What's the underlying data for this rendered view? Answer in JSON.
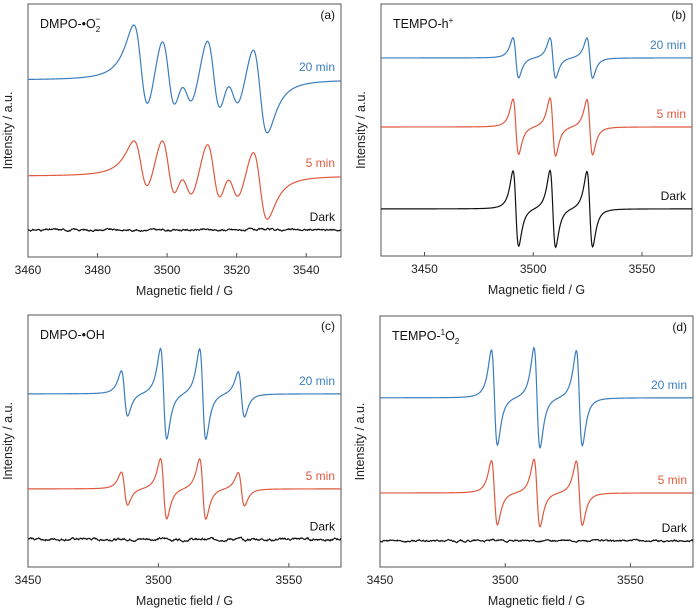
{
  "chart_data": [
    {
      "id": "a",
      "type": "line",
      "panel_label": "(a)",
      "title": "DMPO-•O",
      "title_sub": "2",
      "title_sup": "−",
      "xlabel": "Magnetic field / G",
      "ylabel": "Intensity / a.u.",
      "xlim": [
        3460,
        3550
      ],
      "xticks": [
        3460,
        3480,
        3500,
        3520,
        3540
      ],
      "ylim": [
        0,
        1
      ],
      "grid": false,
      "series": [
        {
          "name": "20 min",
          "color": "#3b7dbf",
          "baseline": 0.7,
          "amplitude": 0.37,
          "width": 2.2,
          "lines": [
            3492.5,
            3500.4,
            3505.6,
            3513.4,
            3518.9,
            3526.7
          ],
          "weights": [
            1.0,
            1.0,
            0.55,
            1.0,
            0.55,
            1.0
          ]
        },
        {
          "name": "5 min",
          "color": "#e05a3f",
          "baseline": 0.32,
          "amplitude": 0.3,
          "width": 2.2,
          "lines": [
            3492.5,
            3500.4,
            3505.6,
            3513.4,
            3518.9,
            3526.7
          ],
          "weights": [
            0.75,
            1.0,
            0.6,
            1.0,
            0.6,
            1.0
          ]
        },
        {
          "name": "Dark",
          "color": "#111111",
          "baseline": 0.107,
          "amplitude": 0.0,
          "noise": 0.004,
          "lines": [],
          "weights": []
        }
      ]
    },
    {
      "id": "b",
      "type": "line",
      "panel_label": "(b)",
      "title": "TEMPO-h",
      "title_sub": "",
      "title_sup": "+",
      "xlabel": "Magnetic field / G",
      "ylabel": "Intensity / a.u.",
      "xlim": [
        3430,
        3573
      ],
      "xticks": [
        3450,
        3500,
        3550
      ],
      "ylim": [
        0,
        1
      ],
      "grid": false,
      "series": [
        {
          "name": "20 min",
          "color": "#3b7dbf",
          "baseline": 0.786,
          "amplitude": 0.16,
          "width": 1.3,
          "lines": [
            3492.0,
            3509.0,
            3526.0
          ],
          "weights": [
            1.0,
            1.0,
            1.0
          ]
        },
        {
          "name": "5 min",
          "color": "#e05a3f",
          "baseline": 0.512,
          "amplitude": 0.22,
          "width": 1.3,
          "lines": [
            3492.0,
            3509.0,
            3526.0
          ],
          "weights": [
            1.0,
            1.05,
            1.0
          ]
        },
        {
          "name": "Dark",
          "color": "#111111",
          "baseline": 0.187,
          "amplitude": 0.3,
          "width": 1.3,
          "lines": [
            3492.0,
            3509.0,
            3526.0
          ],
          "weights": [
            1.0,
            1.02,
            1.0
          ]
        }
      ]
    },
    {
      "id": "c",
      "type": "line",
      "panel_label": "(c)",
      "title": "DMPO-•OH",
      "title_sub": "",
      "title_sup": "",
      "xlabel": "Magnetic field / G",
      "ylabel": "Intensity / a.u.",
      "xlim": [
        3450,
        3570
      ],
      "xticks": [
        3450,
        3500,
        3550
      ],
      "ylim": [
        0,
        1
      ],
      "grid": false,
      "series": [
        {
          "name": "20 min",
          "color": "#3b7dbf",
          "baseline": 0.687,
          "amplitude": 0.36,
          "width": 1.2,
          "lines": [
            3487.0,
            3502.0,
            3517.0,
            3531.8
          ],
          "weights": [
            0.5,
            1.0,
            1.0,
            0.5
          ]
        },
        {
          "name": "5 min",
          "color": "#e05a3f",
          "baseline": 0.31,
          "amplitude": 0.24,
          "width": 1.2,
          "lines": [
            3487.0,
            3502.0,
            3517.0,
            3531.8
          ],
          "weights": [
            0.55,
            1.0,
            1.0,
            0.55
          ]
        },
        {
          "name": "Dark",
          "color": "#111111",
          "baseline": 0.11,
          "amplitude": 0.0,
          "noise": 0.005,
          "lines": [],
          "weights": []
        }
      ]
    },
    {
      "id": "d",
      "type": "line",
      "panel_label": "(d)",
      "title": "TEMPO-",
      "title_pre_sup": "1",
      "title_tail": "O",
      "title_sub": "2",
      "title_sup": "",
      "xlabel": "Magnetic field / G",
      "ylabel": "Intensity / a.u.",
      "xlim": [
        3450,
        3575
      ],
      "xticks": [
        3450,
        3500,
        3550
      ],
      "ylim": [
        0,
        1
      ],
      "grid": false,
      "series": [
        {
          "name": "20 min",
          "color": "#3b7dbf",
          "baseline": 0.674,
          "amplitude": 0.4,
          "width": 1.2,
          "lines": [
            3495.7,
            3512.7,
            3529.6
          ],
          "weights": [
            0.95,
            1.0,
            0.95
          ]
        },
        {
          "name": "5 min",
          "color": "#e05a3f",
          "baseline": 0.295,
          "amplitude": 0.27,
          "width": 1.2,
          "lines": [
            3495.7,
            3512.7,
            3529.6
          ],
          "weights": [
            0.95,
            1.0,
            0.95
          ]
        },
        {
          "name": "Dark",
          "color": "#111111",
          "baseline": 0.104,
          "amplitude": 0.0,
          "noise": 0.004,
          "lines": [],
          "weights": []
        }
      ]
    }
  ]
}
